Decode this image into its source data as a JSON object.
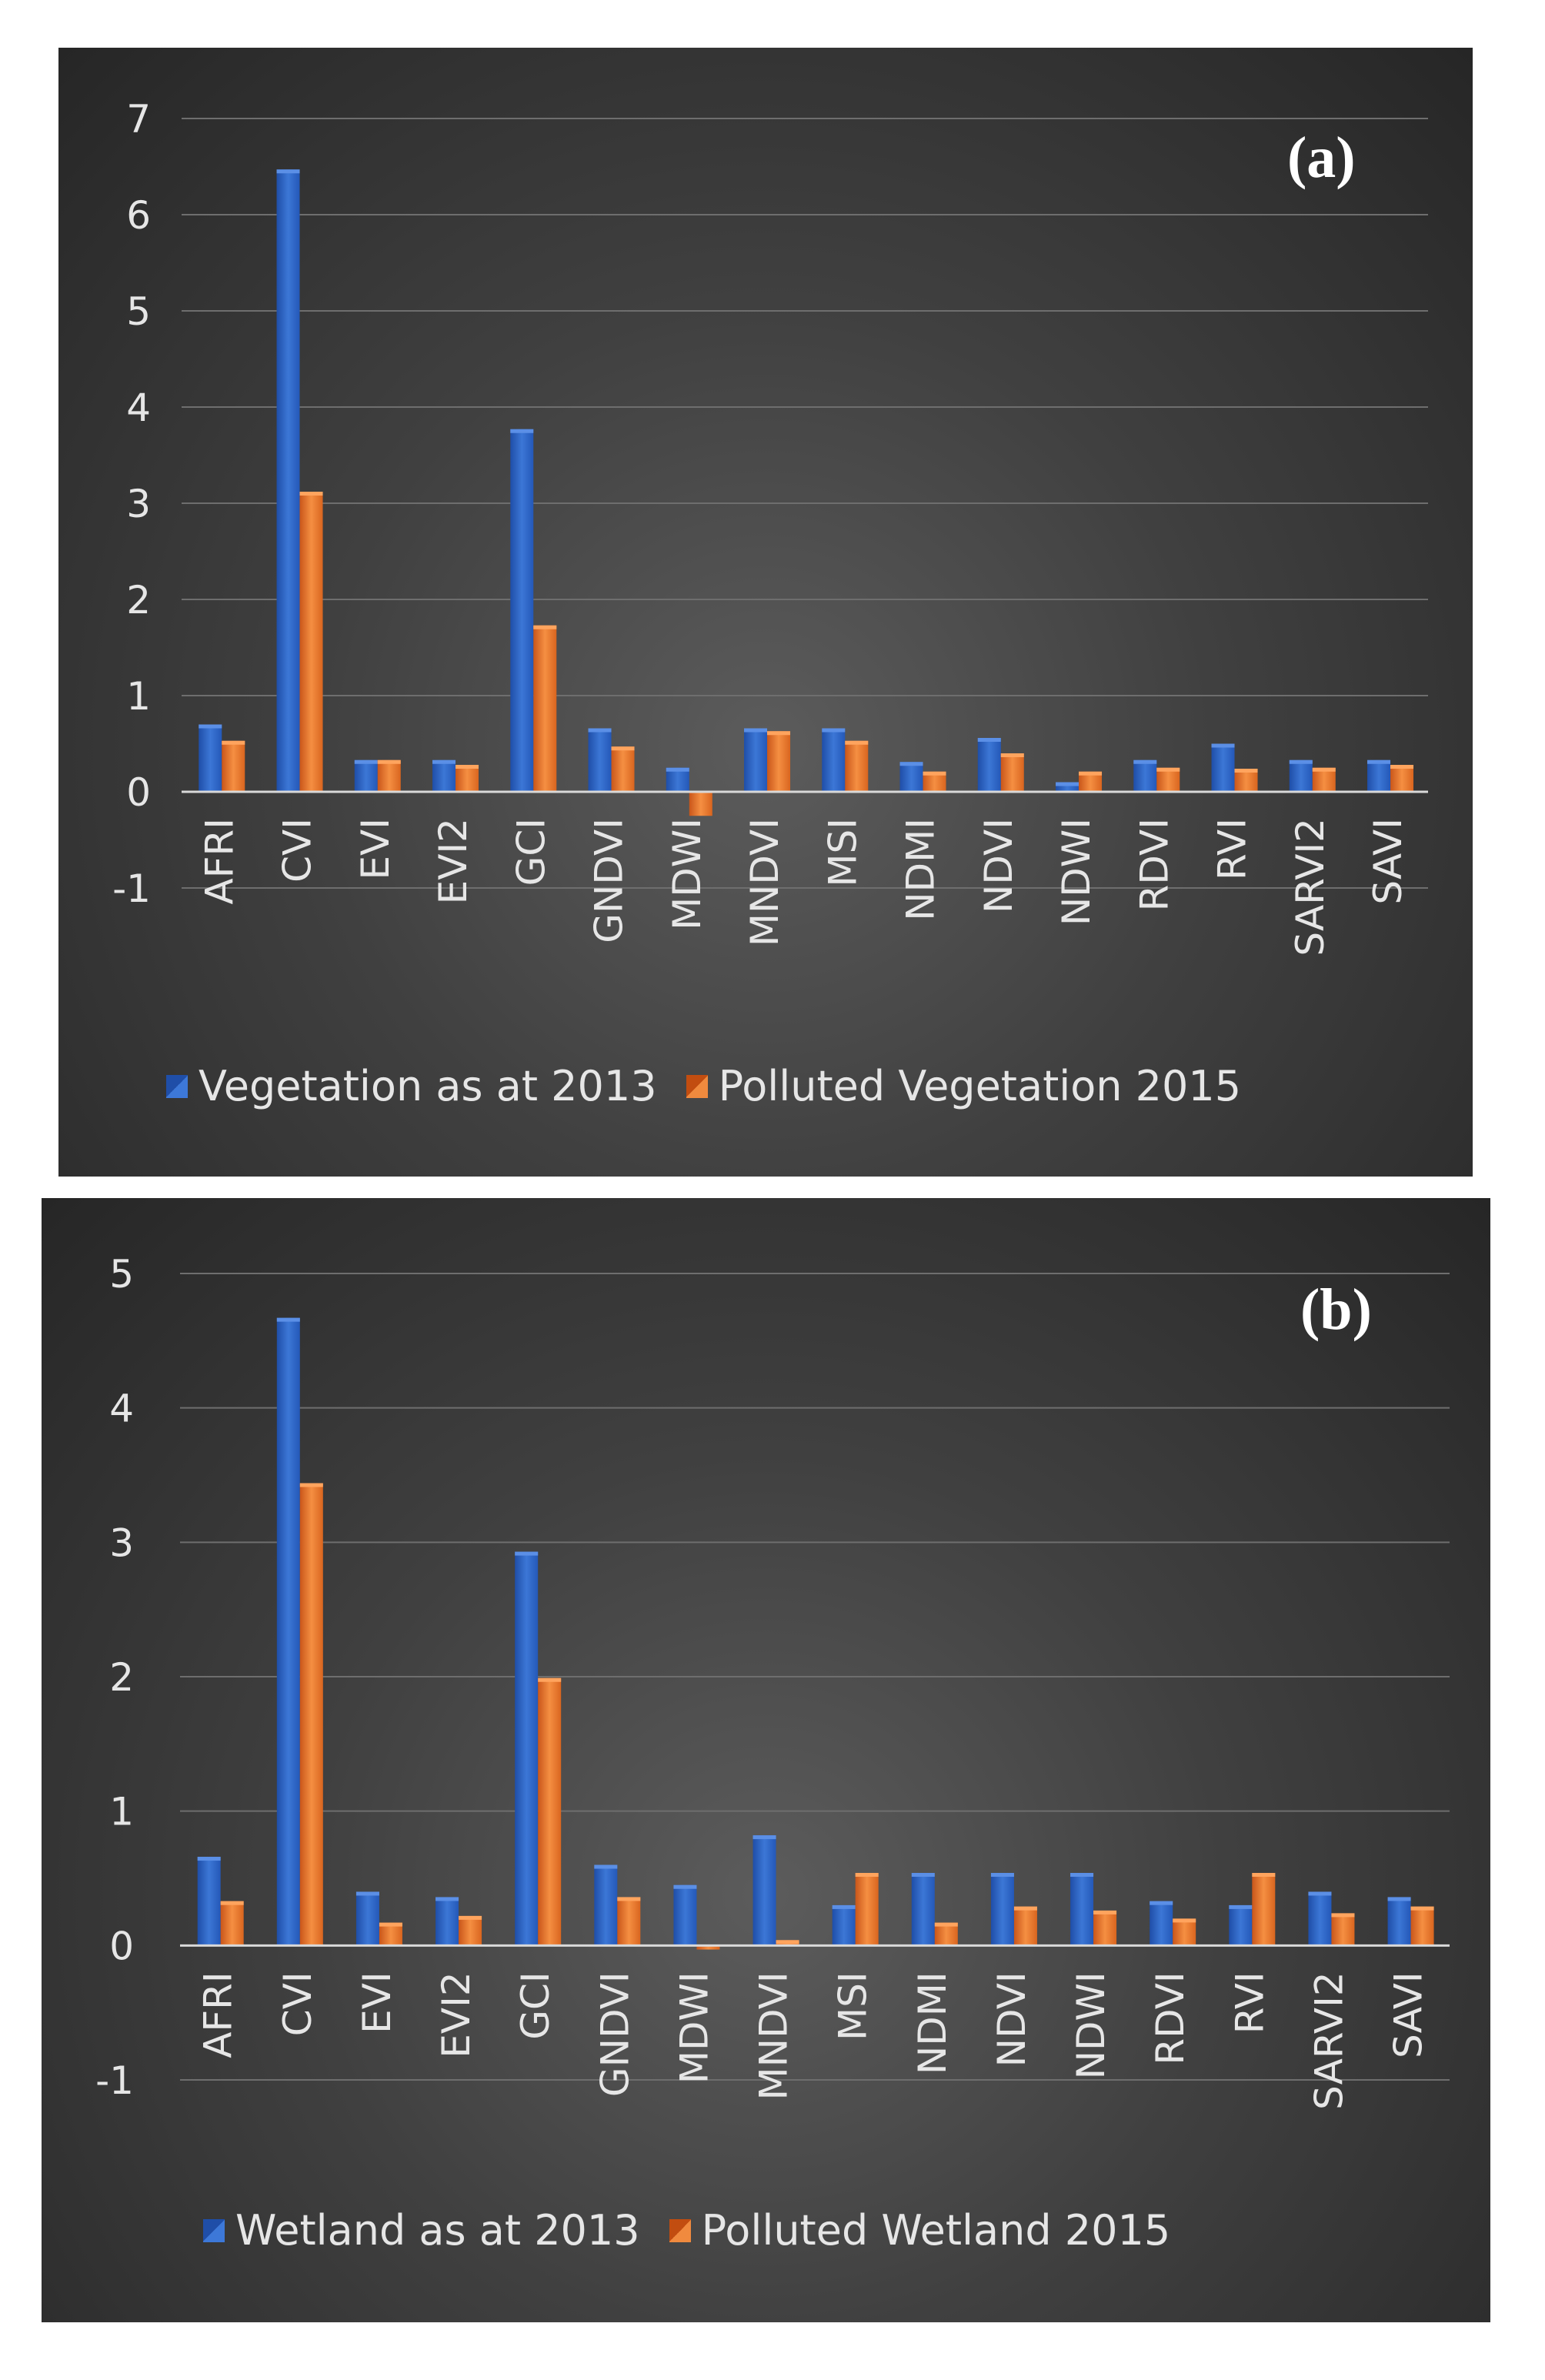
{
  "chart_data": [
    {
      "type": "bar",
      "panel_label": "(a)",
      "title": "",
      "xlabel": "",
      "ylabel": "",
      "ylim": [
        -1,
        7
      ],
      "yticks": [
        -1,
        0,
        1,
        2,
        3,
        4,
        5,
        6,
        7
      ],
      "grid": true,
      "legend_position": "bottom",
      "categories": [
        "AFRI",
        "CVI",
        "EVI",
        "EVI2",
        "GCI",
        "GNDVI",
        "MDWI",
        "MNDVI",
        "MSI",
        "NDMI",
        "NDVI",
        "NDWI",
        "RDVI",
        "RVI",
        "SARVI2",
        "SAVI"
      ],
      "series": [
        {
          "name": "Vegetation as at 2013",
          "color": "#2f62c4",
          "values": [
            0.7,
            6.47,
            0.33,
            0.33,
            3.77,
            0.66,
            0.25,
            0.66,
            0.66,
            0.31,
            0.56,
            0.1,
            0.33,
            0.5,
            0.33,
            0.33
          ]
        },
        {
          "name": "Polluted Vegetation 2015",
          "color": "#e8732a",
          "values": [
            0.53,
            3.12,
            0.33,
            0.28,
            1.73,
            0.47,
            -0.25,
            0.63,
            0.53,
            0.21,
            0.4,
            0.21,
            0.25,
            0.24,
            0.25,
            0.28
          ]
        }
      ]
    },
    {
      "type": "bar",
      "panel_label": "(b)",
      "title": "",
      "xlabel": "",
      "ylabel": "",
      "ylim": [
        -1,
        5
      ],
      "yticks": [
        -1,
        0,
        1,
        2,
        3,
        4,
        5
      ],
      "grid": true,
      "legend_position": "bottom",
      "categories": [
        "AFRI",
        "CVI",
        "EVI",
        "EVI2",
        "GCI",
        "GNDVI",
        "MDWI",
        "MNDVI",
        "MSI",
        "NDMI",
        "NDVI",
        "NDWI",
        "RDVI",
        "RVI",
        "SARVI2",
        "SAVI"
      ],
      "series": [
        {
          "name": "Wetland as at 2013",
          "color": "#2f62c4",
          "values": [
            0.66,
            4.67,
            0.4,
            0.36,
            2.93,
            0.6,
            0.45,
            0.82,
            0.3,
            0.54,
            0.54,
            0.54,
            0.33,
            0.3,
            0.4,
            0.36
          ]
        },
        {
          "name": "Polluted Wetland 2015",
          "color": "#e8732a",
          "values": [
            0.33,
            3.44,
            0.17,
            0.22,
            1.99,
            0.36,
            -0.03,
            0.04,
            0.54,
            0.17,
            0.29,
            0.26,
            0.2,
            0.54,
            0.24,
            0.29
          ]
        }
      ]
    }
  ]
}
